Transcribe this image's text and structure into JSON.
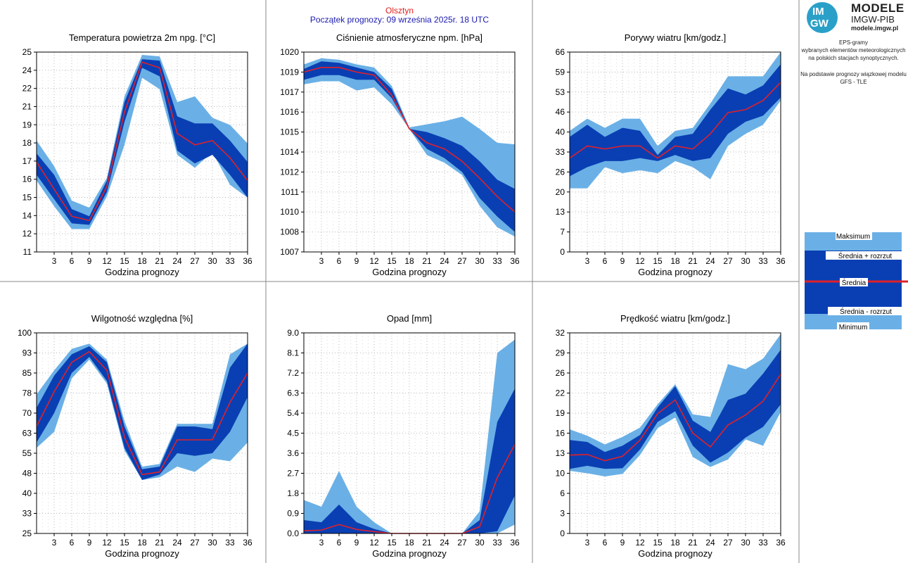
{
  "header": {
    "city": "Olsztyn",
    "forecast_start": "Początek prognozy: 09 września 2025r. 18 UTC"
  },
  "logo": {
    "circle_top": "IM",
    "circle_bottom": "GW",
    "name": "MODELE",
    "org": "IMGW-PIB",
    "url": "modele.imgw.pl"
  },
  "description": {
    "line1": "EPS-gramy",
    "line2": "wybranych elementów meteorologicznych",
    "line3": "na polskich stacjach  synoptycznych.",
    "line4": "Na podstawie prognozy wiązkowej modelu",
    "line5": "GFS - TLE"
  },
  "legend": {
    "max": "Maksimum",
    "mean_plus": "Średnia + rozrzut",
    "mean": "Średnia",
    "mean_minus": "Średnia - rozrzut",
    "min": "Minimum"
  },
  "colors": {
    "outer_band": "#6ab0e6",
    "inner_band": "#0a3fb3",
    "mean_line": "#e0202a",
    "grid": "#b8b8b8"
  },
  "chart_data": [
    {
      "type": "area",
      "title": "Temperatura powietrza 2m npg. [°C]",
      "xlabel": "Godzina prognozy",
      "x": [
        0,
        3,
        6,
        9,
        12,
        15,
        18,
        21,
        24,
        27,
        30,
        33,
        36
      ],
      "xticks": [
        3,
        6,
        9,
        12,
        15,
        18,
        21,
        24,
        27,
        30,
        33,
        36
      ],
      "ylim": [
        11,
        25
      ],
      "yticks": [
        "11",
        "12",
        "14",
        "15",
        "16",
        "17",
        "18",
        "19",
        "21",
        "22",
        "24",
        "25"
      ],
      "series": [
        {
          "name": "Maksimum",
          "values": [
            18.8,
            17.0,
            14.6,
            14.1,
            16.2,
            21.9,
            24.8,
            24.7,
            21.5,
            21.9,
            20.4,
            19.9,
            18.6
          ]
        },
        {
          "name": "Średnia + rozrzut",
          "values": [
            17.9,
            16.4,
            14.0,
            13.5,
            16.0,
            21.5,
            24.5,
            24.4,
            20.5,
            20.0,
            20.0,
            18.8,
            17.3
          ]
        },
        {
          "name": "Średnia",
          "values": [
            17.3,
            15.4,
            13.5,
            13.2,
            15.6,
            20.8,
            24.3,
            23.9,
            19.3,
            18.5,
            18.8,
            17.6,
            16.0
          ]
        },
        {
          "name": "Średnia - rozrzut",
          "values": [
            16.4,
            14.7,
            13.0,
            12.9,
            15.2,
            20.1,
            23.9,
            23.3,
            18.1,
            17.2,
            17.8,
            16.4,
            14.8
          ]
        },
        {
          "name": "Minimum",
          "values": [
            16.0,
            14.2,
            12.6,
            12.6,
            14.9,
            18.5,
            23.2,
            22.4,
            17.8,
            16.9,
            18.0,
            15.7,
            14.8
          ]
        }
      ]
    },
    {
      "type": "area",
      "title": "Ciśnienie atmosferyczne npm. [hPa]",
      "xlabel": "Godzina prognozy",
      "x": [
        0,
        3,
        6,
        9,
        12,
        15,
        18,
        21,
        24,
        27,
        30,
        33,
        36
      ],
      "xticks": [
        3,
        6,
        9,
        12,
        15,
        18,
        21,
        24,
        27,
        30,
        33,
        36
      ],
      "ylim": [
        1007,
        1020
      ],
      "yticks": [
        "1007",
        "1008",
        "1010",
        "1011",
        "1012",
        "1014",
        "1015",
        "1016",
        "1017",
        "1019",
        "1020"
      ],
      "series": [
        {
          "name": "Maksimum",
          "values": [
            1019.2,
            1019.6,
            1019.5,
            1019.2,
            1019.0,
            1017.8,
            1015.1,
            1015.3,
            1015.5,
            1015.8,
            1015.0,
            1014.1,
            1014.0
          ]
        },
        {
          "name": "Średnia + rozrzut",
          "values": [
            1018.9,
            1019.4,
            1019.3,
            1019.0,
            1018.7,
            1017.6,
            1015.0,
            1014.8,
            1014.4,
            1013.9,
            1012.9,
            1011.7,
            1011.1
          ]
        },
        {
          "name": "Średnia",
          "values": [
            1018.7,
            1019.0,
            1019.0,
            1018.7,
            1018.5,
            1017.2,
            1015.0,
            1014.1,
            1013.7,
            1012.9,
            1011.8,
            1010.6,
            1009.6
          ]
        },
        {
          "name": "Średnia - rozrzut",
          "values": [
            1018.2,
            1018.5,
            1018.5,
            1018.2,
            1018.2,
            1017.0,
            1015.0,
            1013.7,
            1013.1,
            1012.2,
            1010.5,
            1009.3,
            1008.3
          ]
        },
        {
          "name": "Minimum",
          "values": [
            1017.9,
            1018.1,
            1018.1,
            1017.5,
            1017.7,
            1016.6,
            1015.0,
            1013.3,
            1012.8,
            1012.0,
            1010.0,
            1008.6,
            1008.0
          ]
        }
      ]
    },
    {
      "type": "area",
      "title": "Porywy wiatru [km/godz.]",
      "xlabel": "Godzina prognozy",
      "x": [
        0,
        3,
        6,
        9,
        12,
        15,
        18,
        21,
        24,
        27,
        30,
        33,
        36
      ],
      "xticks": [
        3,
        6,
        9,
        12,
        15,
        18,
        21,
        24,
        27,
        30,
        33,
        36
      ],
      "ylim": [
        0,
        66
      ],
      "yticks": [
        "0",
        "7",
        "13",
        "20",
        "26",
        "33",
        "40",
        "46",
        "53",
        "59",
        "66"
      ],
      "series": [
        {
          "name": "Maksimum",
          "values": [
            40,
            44,
            41,
            44,
            44,
            35,
            40,
            41,
            49,
            58,
            58,
            58,
            66
          ]
        },
        {
          "name": "Średnia + rozrzut",
          "values": [
            38,
            42,
            38,
            41,
            40,
            32,
            38,
            39,
            47,
            54,
            52,
            55,
            62
          ]
        },
        {
          "name": "Średnia",
          "values": [
            31,
            35,
            34,
            35,
            35,
            31,
            35,
            34,
            39,
            46,
            47,
            50,
            56
          ]
        },
        {
          "name": "Średnia - rozrzut",
          "values": [
            25,
            28,
            30,
            30,
            31,
            30,
            32,
            30,
            31,
            39,
            43,
            45,
            51
          ]
        },
        {
          "name": "Minimum",
          "values": [
            21,
            21,
            28,
            26,
            27,
            26,
            30,
            28,
            24,
            35,
            39,
            42,
            50
          ]
        }
      ]
    },
    {
      "type": "area",
      "title": "Wilgotność względna [%]",
      "xlabel": "Godzina prognozy",
      "x": [
        0,
        3,
        6,
        9,
        12,
        15,
        18,
        21,
        24,
        27,
        30,
        33,
        36
      ],
      "xticks": [
        3,
        6,
        9,
        12,
        15,
        18,
        21,
        24,
        27,
        30,
        33,
        36
      ],
      "ylim": [
        25,
        100
      ],
      "yticks": [
        "25",
        "33",
        "40",
        "48",
        "55",
        "63",
        "70",
        "78",
        "85",
        "93",
        "100"
      ],
      "series": [
        {
          "name": "Maksimum",
          "values": [
            77,
            86,
            94,
            96,
            90,
            67,
            50,
            51,
            66,
            66,
            66,
            92,
            96
          ]
        },
        {
          "name": "Średnia + rozrzut",
          "values": [
            72,
            84,
            92,
            95,
            89,
            65,
            49,
            50,
            65,
            65,
            64,
            87,
            96
          ]
        },
        {
          "name": "Średnia",
          "values": [
            65,
            78,
            89,
            93,
            86,
            61,
            47,
            48,
            60,
            60,
            60,
            74,
            85
          ]
        },
        {
          "name": "Średnia - rozrzut",
          "values": [
            59,
            70,
            85,
            91,
            82,
            57,
            45,
            47,
            55,
            54,
            55,
            63,
            76
          ]
        },
        {
          "name": "Minimum",
          "values": [
            57,
            63,
            83,
            90,
            81,
            56,
            45,
            46,
            50,
            48,
            53,
            52,
            59
          ]
        }
      ]
    },
    {
      "type": "area",
      "title": "Opad [mm]",
      "xlabel": "Godzina prognozy",
      "x": [
        0,
        3,
        6,
        9,
        12,
        15,
        18,
        21,
        24,
        27,
        30,
        33,
        36
      ],
      "xticks": [
        3,
        6,
        9,
        12,
        15,
        18,
        21,
        24,
        27,
        30,
        33,
        36
      ],
      "ylim": [
        0,
        9
      ],
      "yticks": [
        "0.0",
        "0.9",
        "1.8",
        "2.7",
        "3.6",
        "4.5",
        "5.4",
        "6.3",
        "7.2",
        "8.1",
        "9.0"
      ],
      "series": [
        {
          "name": "Maksimum",
          "values": [
            1.5,
            1.2,
            2.8,
            1.2,
            0.5,
            0,
            0,
            0,
            0,
            0,
            1.0,
            8.1,
            8.7
          ]
        },
        {
          "name": "Średnia + rozrzut",
          "values": [
            0.6,
            0.5,
            1.3,
            0.5,
            0.2,
            0,
            0,
            0,
            0,
            0,
            0.6,
            5.0,
            6.5
          ]
        },
        {
          "name": "Średnia",
          "values": [
            0.12,
            0.15,
            0.4,
            0.18,
            0.08,
            0,
            0,
            0,
            0,
            0,
            0.3,
            2.5,
            4.0
          ]
        },
        {
          "name": "Średnia - rozrzut",
          "values": [
            0,
            0,
            0,
            0,
            0,
            0,
            0,
            0,
            0,
            0,
            0,
            0.1,
            1.7
          ]
        },
        {
          "name": "Minimum",
          "values": [
            0,
            0,
            0,
            0,
            0,
            0,
            0,
            0,
            0,
            0,
            0,
            0,
            0.4
          ]
        }
      ]
    },
    {
      "type": "area",
      "title": "Prędkość wiatru [km/godz.]",
      "xlabel": "Godzina prognozy",
      "x": [
        0,
        3,
        6,
        9,
        12,
        15,
        18,
        21,
        24,
        27,
        30,
        33,
        36
      ],
      "xticks": [
        3,
        6,
        9,
        12,
        15,
        18,
        21,
        24,
        27,
        30,
        33,
        36
      ],
      "ylim": [
        0,
        32
      ],
      "yticks": [
        "0",
        "3",
        "6",
        "10",
        "13",
        "16",
        "19",
        "22",
        "26",
        "29",
        "32"
      ],
      "series": [
        {
          "name": "Maksimum",
          "values": [
            16.6,
            15.6,
            14.2,
            15.4,
            16.9,
            20.6,
            23.8,
            19.0,
            18.6,
            27.0,
            26.2,
            27.9,
            31.8
          ]
        },
        {
          "name": "Średnia + rozrzut",
          "values": [
            14.9,
            14.6,
            13.0,
            14.0,
            15.7,
            20.1,
            23.5,
            18.0,
            16.2,
            21.3,
            22.3,
            25.5,
            29.3
          ]
        },
        {
          "name": "Średnia",
          "values": [
            12.5,
            12.6,
            11.6,
            12.3,
            14.9,
            19.1,
            21.3,
            16.0,
            13.8,
            17.3,
            18.9,
            21.1,
            25.4
          ]
        },
        {
          "name": "Średnia - rozrzut",
          "values": [
            10.3,
            10.8,
            10.3,
            10.4,
            13.4,
            17.8,
            19.5,
            14.0,
            11.3,
            12.9,
            15.3,
            17.0,
            20.6
          ]
        },
        {
          "name": "Minimum",
          "values": [
            10.0,
            9.6,
            9.1,
            9.5,
            12.5,
            16.8,
            18.5,
            12.2,
            10.6,
            11.8,
            15.0,
            14.0,
            19.4
          ]
        }
      ]
    }
  ]
}
